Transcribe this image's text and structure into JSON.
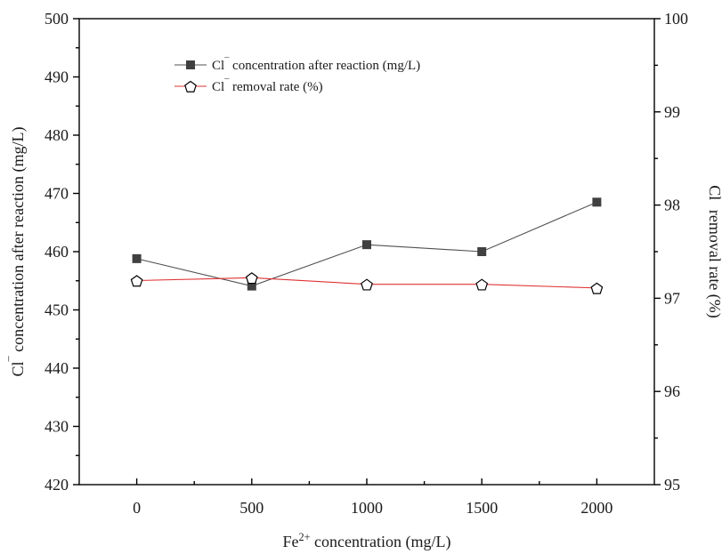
{
  "chart_data": {
    "type": "line",
    "title": "",
    "x": [
      0,
      500,
      1000,
      1500,
      2000
    ],
    "x_tick_labels": [
      "0",
      "500",
      "1000",
      "1500",
      "2000"
    ],
    "xlim": [
      -250,
      2250
    ],
    "xlabel": {
      "main": "Fe",
      "sup": "2+",
      "rest": " concentration (mg/L)"
    },
    "ylabel_left": {
      "main": "Cl",
      "sup": "¯",
      "rest": " concentration after reaction (mg/L)"
    },
    "ylabel_right": {
      "main": "Cl",
      "sup": "¯",
      "rest": " removal rate (%)"
    },
    "ylim_left": [
      420,
      500
    ],
    "ylim_right": [
      95,
      100
    ],
    "y_left_ticks": [
      "420",
      "430",
      "440",
      "450",
      "460",
      "470",
      "480",
      "490",
      "500"
    ],
    "y_right_ticks": [
      "95",
      "96",
      "97",
      "98",
      "99",
      "100"
    ],
    "grid": false,
    "legend_position": "top-center",
    "series": [
      {
        "name": {
          "main": "Cl",
          "sup": "¯",
          "rest": " concentration after reaction (mg/L)"
        },
        "axis": "left",
        "marker": "square",
        "color": "#404040",
        "line_color": "#505050",
        "values": [
          458.8,
          454.1,
          461.2,
          460.0,
          468.5
        ]
      },
      {
        "name": {
          "main": "Cl",
          "sup": "¯",
          "rest": " removal rate (%)"
        },
        "axis": "right",
        "marker": "pentagon-open",
        "color": "#000000",
        "line_color": "#e03030",
        "values": [
          97.19,
          97.22,
          97.15,
          97.15,
          97.11
        ]
      }
    ]
  }
}
